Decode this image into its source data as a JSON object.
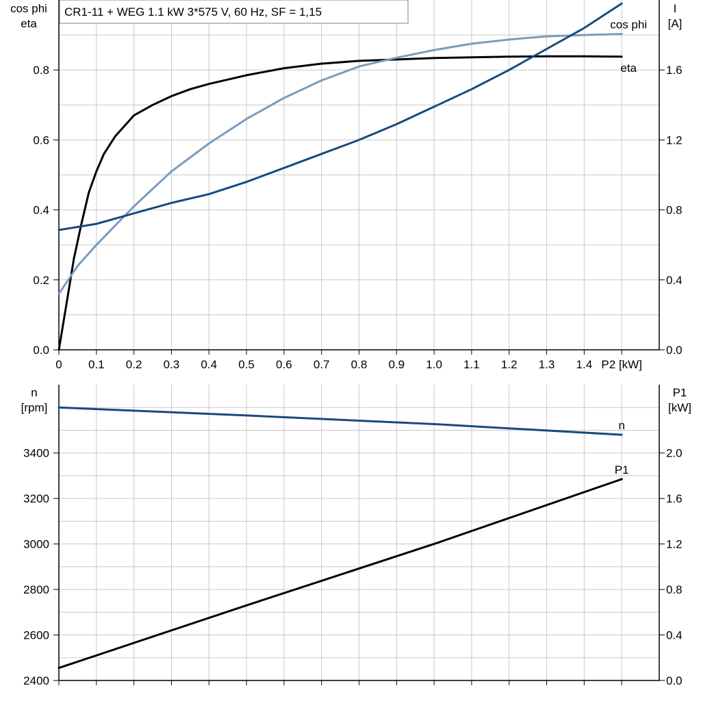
{
  "colors": {
    "cos_phi": "#7a9cbb",
    "current": "#174a7c",
    "eta": "#000000",
    "speed": "#174a7c",
    "p1": "#000000",
    "grid": "#c8c8c8"
  },
  "chart_data": [
    {
      "type": "line",
      "title": "CR1-11 + WEG   1.1 kW   3*575 V, 60 Hz, SF = 1,15",
      "xlabel": "P2 [kW]",
      "xlim": [
        0,
        1.6
      ],
      "x_ticks": [
        "0",
        "0.1",
        "0.2",
        "0.3",
        "0.4",
        "0.5",
        "0.6",
        "0.7",
        "0.8",
        "0.9",
        "1.0",
        "1.1",
        "1.2",
        "1.3",
        "1.4"
      ],
      "x_axis_label": "P2 [kW]",
      "left_axis": {
        "label_line1": "cos phi",
        "label_line2": "eta",
        "ylim": [
          0,
          1.0
        ],
        "ticks": [
          "0.0",
          "0.2",
          "0.4",
          "0.6",
          "0.8"
        ]
      },
      "right_axis": {
        "label_line1": "I",
        "label_line2": "[A]",
        "ylim": [
          0,
          2.0
        ],
        "ticks": [
          "0.0",
          "0.4",
          "0.8",
          "1.2",
          "1.6"
        ]
      },
      "grid": true,
      "series": [
        {
          "name": "eta",
          "axis": "left",
          "color_key": "eta",
          "x": [
            0,
            0.02,
            0.04,
            0.06,
            0.08,
            0.1,
            0.12,
            0.15,
            0.2,
            0.25,
            0.3,
            0.35,
            0.4,
            0.5,
            0.6,
            0.7,
            0.8,
            0.9,
            1.0,
            1.1,
            1.2,
            1.3,
            1.4,
            1.5
          ],
          "values": [
            0.0,
            0.13,
            0.26,
            0.36,
            0.45,
            0.51,
            0.56,
            0.61,
            0.67,
            0.7,
            0.725,
            0.745,
            0.76,
            0.785,
            0.805,
            0.818,
            0.826,
            0.83,
            0.834,
            0.836,
            0.838,
            0.839,
            0.839,
            0.838
          ]
        },
        {
          "name": "cos phi",
          "axis": "left",
          "color_key": "cos_phi",
          "x": [
            0,
            0.05,
            0.1,
            0.2,
            0.3,
            0.4,
            0.5,
            0.6,
            0.7,
            0.8,
            0.9,
            1.0,
            1.1,
            1.2,
            1.3,
            1.4,
            1.5
          ],
          "values": [
            0.16,
            0.24,
            0.3,
            0.41,
            0.51,
            0.59,
            0.66,
            0.72,
            0.77,
            0.81,
            0.835,
            0.857,
            0.875,
            0.887,
            0.896,
            0.9,
            0.903
          ]
        },
        {
          "name": "I",
          "axis": "right",
          "color_key": "current",
          "x": [
            0,
            0.1,
            0.2,
            0.3,
            0.4,
            0.5,
            0.6,
            0.7,
            0.8,
            0.9,
            1.0,
            1.1,
            1.2,
            1.3,
            1.4,
            1.5
          ],
          "values": [
            0.685,
            0.72,
            0.78,
            0.84,
            0.89,
            0.96,
            1.04,
            1.12,
            1.2,
            1.29,
            1.39,
            1.49,
            1.6,
            1.72,
            1.84,
            1.98
          ]
        }
      ]
    },
    {
      "type": "line",
      "xlim": [
        0,
        1.6
      ],
      "left_axis": {
        "label_line1": "n",
        "label_line2": "[rpm]",
        "ylim": [
          2400,
          3700
        ],
        "ticks": [
          "2400",
          "2600",
          "2800",
          "3000",
          "3200",
          "3400"
        ]
      },
      "right_axis": {
        "label_line1": "P1",
        "label_line2": "[kW]",
        "ylim": [
          0,
          2.6
        ],
        "ticks": [
          "0.0",
          "0.4",
          "0.8",
          "1.2",
          "1.6",
          "2.0"
        ]
      },
      "grid": true,
      "series": [
        {
          "name": "n",
          "axis": "left",
          "color_key": "speed",
          "x": [
            0,
            0.5,
            1.0,
            1.5
          ],
          "values": [
            3600,
            3565,
            3527,
            3480
          ]
        },
        {
          "name": "P1",
          "axis": "right",
          "color_key": "p1",
          "x": [
            0,
            0.5,
            1.0,
            1.5
          ],
          "values": [
            0.11,
            0.66,
            1.2,
            1.77
          ]
        }
      ]
    }
  ]
}
